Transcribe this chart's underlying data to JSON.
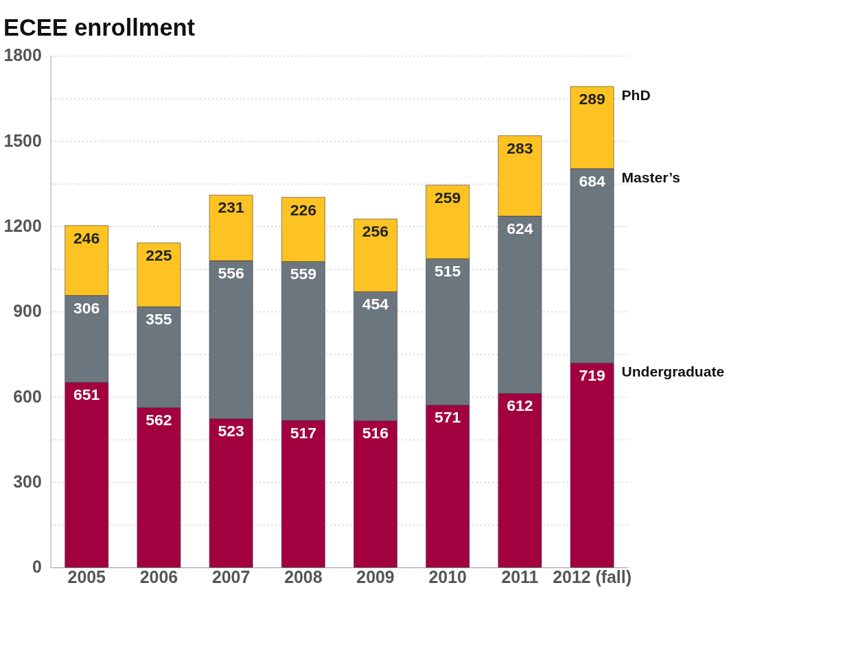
{
  "chart_data": {
    "type": "bar",
    "title": "ECEE enrollment",
    "stacked": true,
    "data_labels": true,
    "grid": "y",
    "legend": "right",
    "categories": [
      "2005",
      "2006",
      "2007",
      "2008",
      "2009",
      "2010",
      "2011",
      "2012 (fall)"
    ],
    "series": [
      {
        "name": "Undergraduate",
        "color": "#a3003f",
        "values": [
          651,
          562,
          523,
          517,
          516,
          571,
          612,
          719
        ]
      },
      {
        "name": "Master’s",
        "color": "#6c767f",
        "values": [
          306,
          355,
          556,
          559,
          454,
          515,
          624,
          684
        ]
      },
      {
        "name": "PhD",
        "color": "#fdc322",
        "values": [
          246,
          225,
          231,
          226,
          256,
          259,
          283,
          289
        ]
      }
    ],
    "ylim": [
      0,
      1800
    ],
    "yticks": [
      0,
      {
        "value": 150,
        "label": null
      },
      300,
      {
        "value": 450,
        "label": null
      },
      600,
      {
        "value": 750,
        "label": null
      },
      900,
      {
        "value": 1050,
        "label": null
      },
      1200,
      {
        "value": 1350,
        "label": null
      },
      1500,
      {
        "value": 1650,
        "label": null
      },
      1800
    ]
  }
}
